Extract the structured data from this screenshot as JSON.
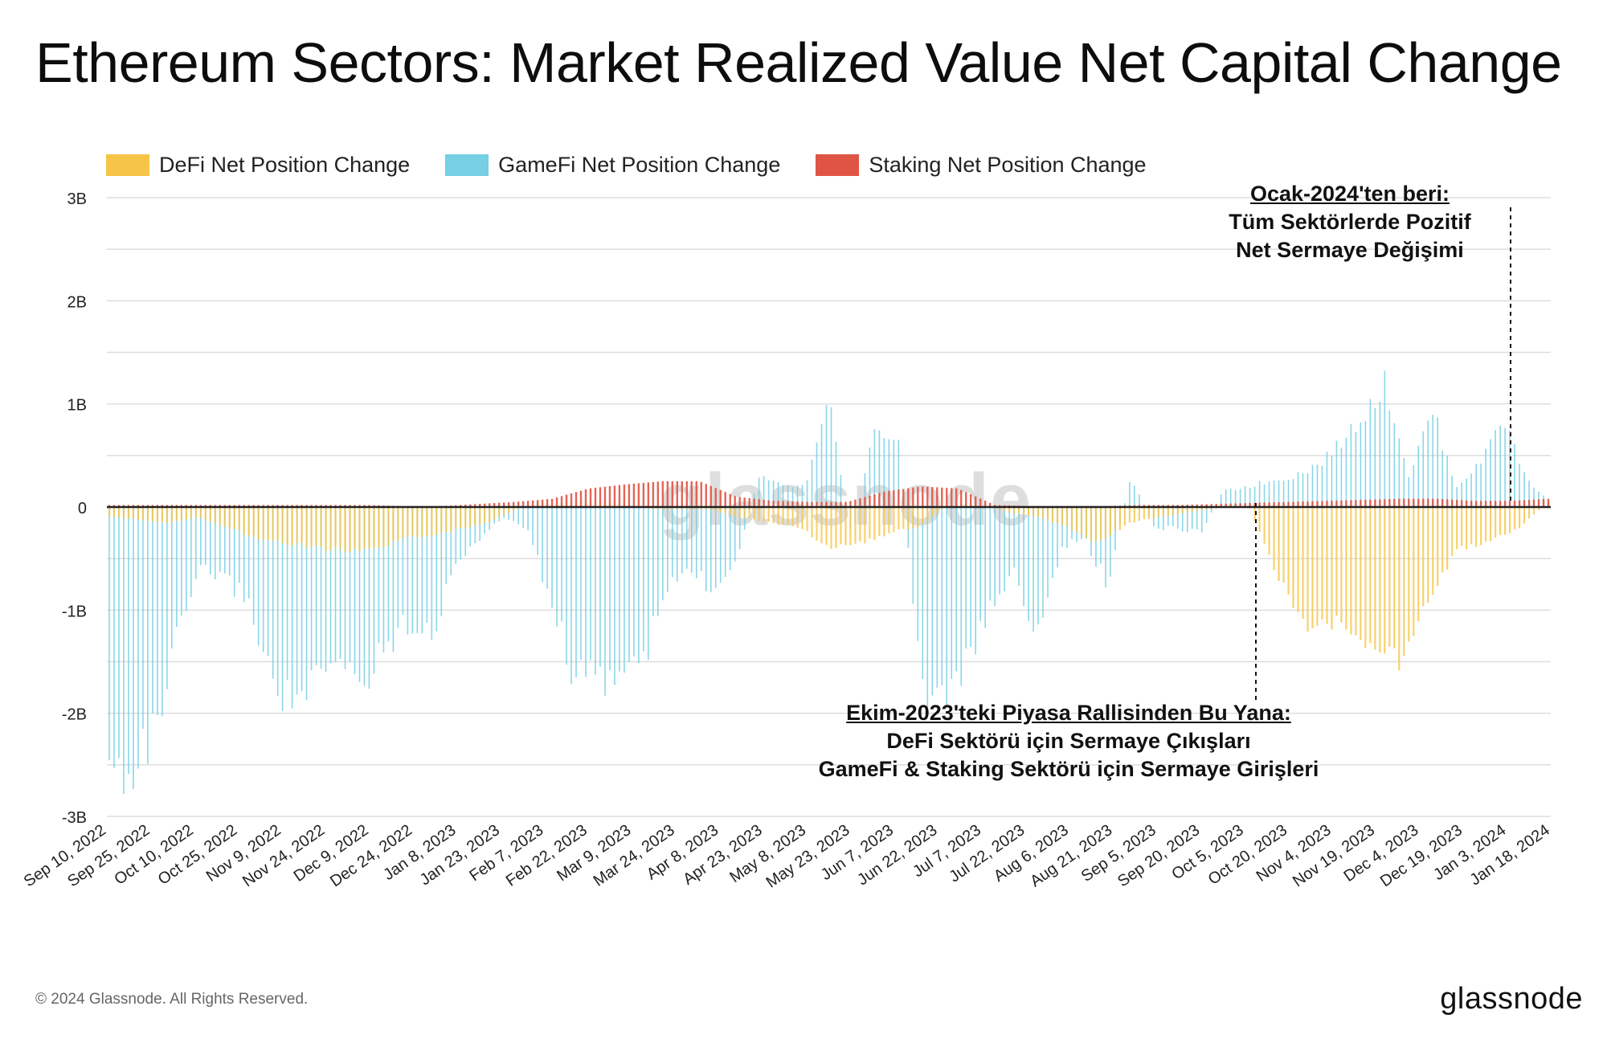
{
  "title": "Ethereum Sectors: Market Realized Value Net Capital Change",
  "watermark": "glassnode",
  "footer": {
    "copyright": "© 2024 Glassnode. All Rights Reserved.",
    "logo": "glassnode"
  },
  "annotations": {
    "top": {
      "head": "Ocak-2024'ten beri:",
      "line1": "Tüm Sektörlerde Pozitif",
      "line2": "Net Sermaye Değişimi"
    },
    "bottom": {
      "head": "Ekim-2023'teki Piyasa Rallisinden Bu Yana:",
      "line1": "DeFi Sektörü için Sermaye Çıkışları",
      "line2": "GameFi & Staking Sektörü için Sermaye Girişleri"
    }
  },
  "colors": {
    "defi": "#f6c548",
    "gamefi": "#76cfe3",
    "staking": "#e05444",
    "grid": "#dddddd",
    "zero": "#222222"
  },
  "chart_data": {
    "type": "bar",
    "title": "Ethereum Sectors: Market Realized Value Net Capital Change",
    "ylim": [
      -3,
      3
    ],
    "yunit": "B",
    "yticks": [
      "3B",
      "2B",
      "1B",
      "0",
      "-1B",
      "-2B",
      "-3B"
    ],
    "ytick_values": [
      3,
      2,
      1,
      0,
      -1,
      -2,
      -3
    ],
    "xticks": [
      "Sep 10, 2022",
      "Sep 25, 2022",
      "Oct 10, 2022",
      "Oct 25, 2022",
      "Nov 9, 2022",
      "Nov 24, 2022",
      "Dec 9, 2022",
      "Dec 24, 2022",
      "Jan 8, 2023",
      "Jan 23, 2023",
      "Feb 7, 2023",
      "Feb 22, 2023",
      "Mar 9, 2023",
      "Mar 24, 2023",
      "Apr 8, 2023",
      "Apr 23, 2023",
      "May 8, 2023",
      "May 23, 2023",
      "Jun 7, 2023",
      "Jun 22, 2023",
      "Jul 7, 2023",
      "Jul 22, 2023",
      "Aug 6, 2023",
      "Aug 21, 2023",
      "Sep 5, 2023",
      "Sep 20, 2023",
      "Oct 5, 2023",
      "Oct 20, 2023",
      "Nov 4, 2023",
      "Nov 19, 2023",
      "Dec 4, 2023",
      "Dec 19, 2023",
      "Jan 3, 2024",
      "Jan 18, 2024"
    ],
    "legend_position": "top-left",
    "series": [
      {
        "name": "DeFi Net Position Change",
        "key": "defi",
        "values": [
          -0.1,
          -0.12,
          -0.15,
          -0.1,
          -0.2,
          -0.3,
          -0.35,
          -0.4,
          -0.42,
          -0.4,
          -0.3,
          -0.25,
          -0.2,
          -0.1,
          0.03,
          0.05,
          0.05,
          0.05,
          -0.02,
          -0.02,
          -0.02,
          -0.1,
          -0.15,
          -0.2,
          -0.38,
          -0.36,
          -0.25,
          -0.2,
          0.03,
          0.04,
          -0.05,
          -0.1,
          -0.2,
          -0.35,
          -0.15,
          -0.1,
          -0.05,
          -0.01,
          0.02,
          -0.7,
          -1.15,
          -1.1,
          -1.3,
          -1.5,
          -0.9,
          -0.4,
          -0.35,
          -0.2,
          0.05
        ]
      },
      {
        "name": "GameFi Net Position Change",
        "key": "gamefi",
        "values": [
          -2.6,
          -2.5,
          -2.2,
          -1.2,
          -0.6,
          -0.7,
          -0.9,
          -1.7,
          -1.9,
          -1.7,
          -1.5,
          -1.7,
          -1.3,
          -1.1,
          -1.2,
          -0.5,
          -0.3,
          -0.1,
          -0.2,
          -0.9,
          -1.6,
          -1.7,
          -1.6,
          -1.5,
          -0.8,
          -0.6,
          -0.8,
          -0.5,
          0.3,
          0.2,
          0.2,
          1.0,
          -0.3,
          0.8,
          0.6,
          -1.8,
          -1.8,
          -1.5,
          -1.0,
          -0.6,
          -1.3,
          -0.4,
          -0.3,
          -0.75,
          0.3,
          -0.2,
          -0.2,
          -0.25,
          0.15,
          0.2,
          0.25,
          0.3,
          0.4,
          0.6,
          0.9,
          1.2,
          0.3,
          0.95,
          0.2,
          0.4,
          0.9,
          0.3,
          0.05
        ]
      },
      {
        "name": "Staking Net Position Change",
        "key": "staking",
        "values": [
          0.02,
          0.02,
          0.02,
          0.02,
          0.02,
          0.02,
          0.02,
          0.02,
          0.01,
          0.01,
          0.03,
          0.05,
          0.08,
          0.18,
          0.22,
          0.25,
          0.25,
          0.1,
          0.06,
          0.05,
          0.05,
          0.15,
          0.2,
          0.18,
          0.02,
          0.01,
          0.01,
          0.01,
          0.02,
          0.02,
          0.03,
          0.04,
          0.05,
          0.06,
          0.07,
          0.08,
          0.08,
          0.06,
          0.06,
          0.08
        ]
      }
    ]
  }
}
